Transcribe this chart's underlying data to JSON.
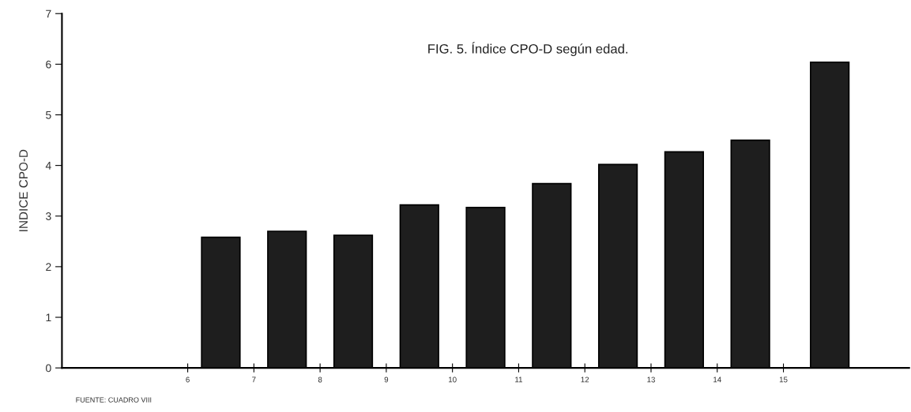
{
  "chart_data": {
    "type": "bar",
    "title": "FIG. 5. Índice CPO-D según edad.",
    "ylabel": "INDICE CPO-D",
    "annotations": [
      "FUENTE: CUADRO VIII"
    ],
    "x": [
      6.5,
      7.5,
      8.5,
      9.5,
      10.5,
      11.5,
      12.5,
      13.5,
      14.5,
      15.7
    ],
    "values": [
      2.58,
      2.7,
      2.62,
      3.22,
      3.17,
      3.64,
      4.02,
      4.27,
      4.5,
      6.04
    ],
    "color": "#1e1e1e",
    "xlim": [
      4.1,
      16.9
    ],
    "xticks": [
      6,
      7,
      8,
      9,
      10,
      11,
      12,
      13,
      14,
      15
    ],
    "ylim": [
      0,
      7
    ],
    "yticks": [
      0,
      1,
      2,
      3,
      4,
      5,
      6,
      7
    ],
    "grid": false,
    "legend": false
  }
}
